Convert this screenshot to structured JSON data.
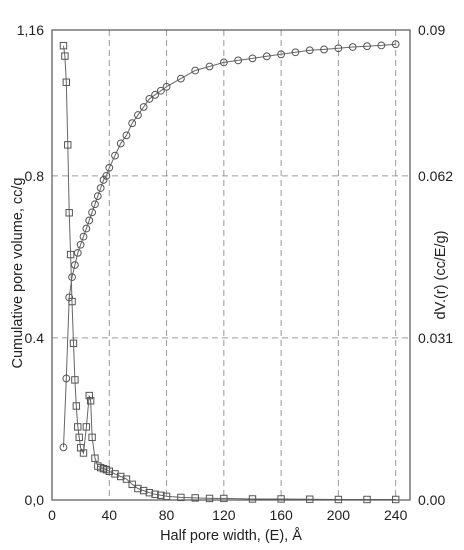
{
  "chart_data": {
    "type": "scatter",
    "title": "",
    "xlabel": "Half pore width, (E), Å",
    "ylabel_left": "Cumulative pore volume, cc/g",
    "ylabel_right": "dV.(r) (cc/E/g)",
    "xlim": [
      0,
      250
    ],
    "ylim_left": [
      0,
      1.16
    ],
    "ylim_right": [
      0,
      0.09
    ],
    "x_ticks": [
      "0",
      "40",
      "80",
      "120",
      "160",
      "200",
      "240"
    ],
    "y_left_ticks": [
      "0,0",
      "0.4",
      "0.8",
      "1,16"
    ],
    "y_right_ticks": [
      "0.00",
      "0.031",
      "0.062",
      "0.09"
    ],
    "grid": "dashed",
    "series": [
      {
        "axis": "left",
        "marker": "circle",
        "x": [
          8,
          10,
          12,
          14,
          16,
          18,
          20,
          22,
          24,
          26,
          28,
          30,
          32,
          34,
          36,
          38,
          40,
          44,
          48,
          52,
          56,
          60,
          64,
          68,
          72,
          76,
          80,
          90,
          100,
          110,
          120,
          130,
          140,
          150,
          160,
          170,
          180,
          190,
          200,
          210,
          220,
          230,
          240
        ],
        "values": [
          0.13,
          0.3,
          0.5,
          0.55,
          0.58,
          0.61,
          0.63,
          0.65,
          0.67,
          0.69,
          0.71,
          0.73,
          0.75,
          0.77,
          0.79,
          0.8,
          0.82,
          0.85,
          0.88,
          0.9,
          0.93,
          0.95,
          0.97,
          0.99,
          1.0,
          1.01,
          1.02,
          1.04,
          1.06,
          1.07,
          1.08,
          1.085,
          1.09,
          1.095,
          1.1,
          1.105,
          1.11,
          1.112,
          1.115,
          1.118,
          1.12,
          1.122,
          1.125
        ]
      },
      {
        "axis": "right",
        "marker": "square",
        "x": [
          8,
          9,
          10,
          11,
          12,
          13,
          14,
          15,
          16,
          17,
          18,
          19,
          20,
          22,
          24,
          26,
          27,
          28,
          30,
          32,
          34,
          36,
          38,
          40,
          44,
          48,
          52,
          56,
          60,
          64,
          68,
          72,
          76,
          80,
          90,
          100,
          110,
          120,
          140,
          160,
          180,
          200,
          220,
          240
        ],
        "values": [
          0.087,
          0.085,
          0.08,
          0.068,
          0.055,
          0.047,
          0.038,
          0.03,
          0.023,
          0.018,
          0.014,
          0.012,
          0.01,
          0.009,
          0.014,
          0.02,
          0.019,
          0.012,
          0.008,
          0.0065,
          0.0062,
          0.006,
          0.0058,
          0.0055,
          0.005,
          0.0045,
          0.004,
          0.003,
          0.0022,
          0.0018,
          0.0014,
          0.0011,
          0.0009,
          0.0007,
          0.0005,
          0.0004,
          0.0003,
          0.0003,
          0.0002,
          0.0002,
          0.00015,
          0.0001,
          0.0001,
          0.0001
        ]
      }
    ]
  }
}
